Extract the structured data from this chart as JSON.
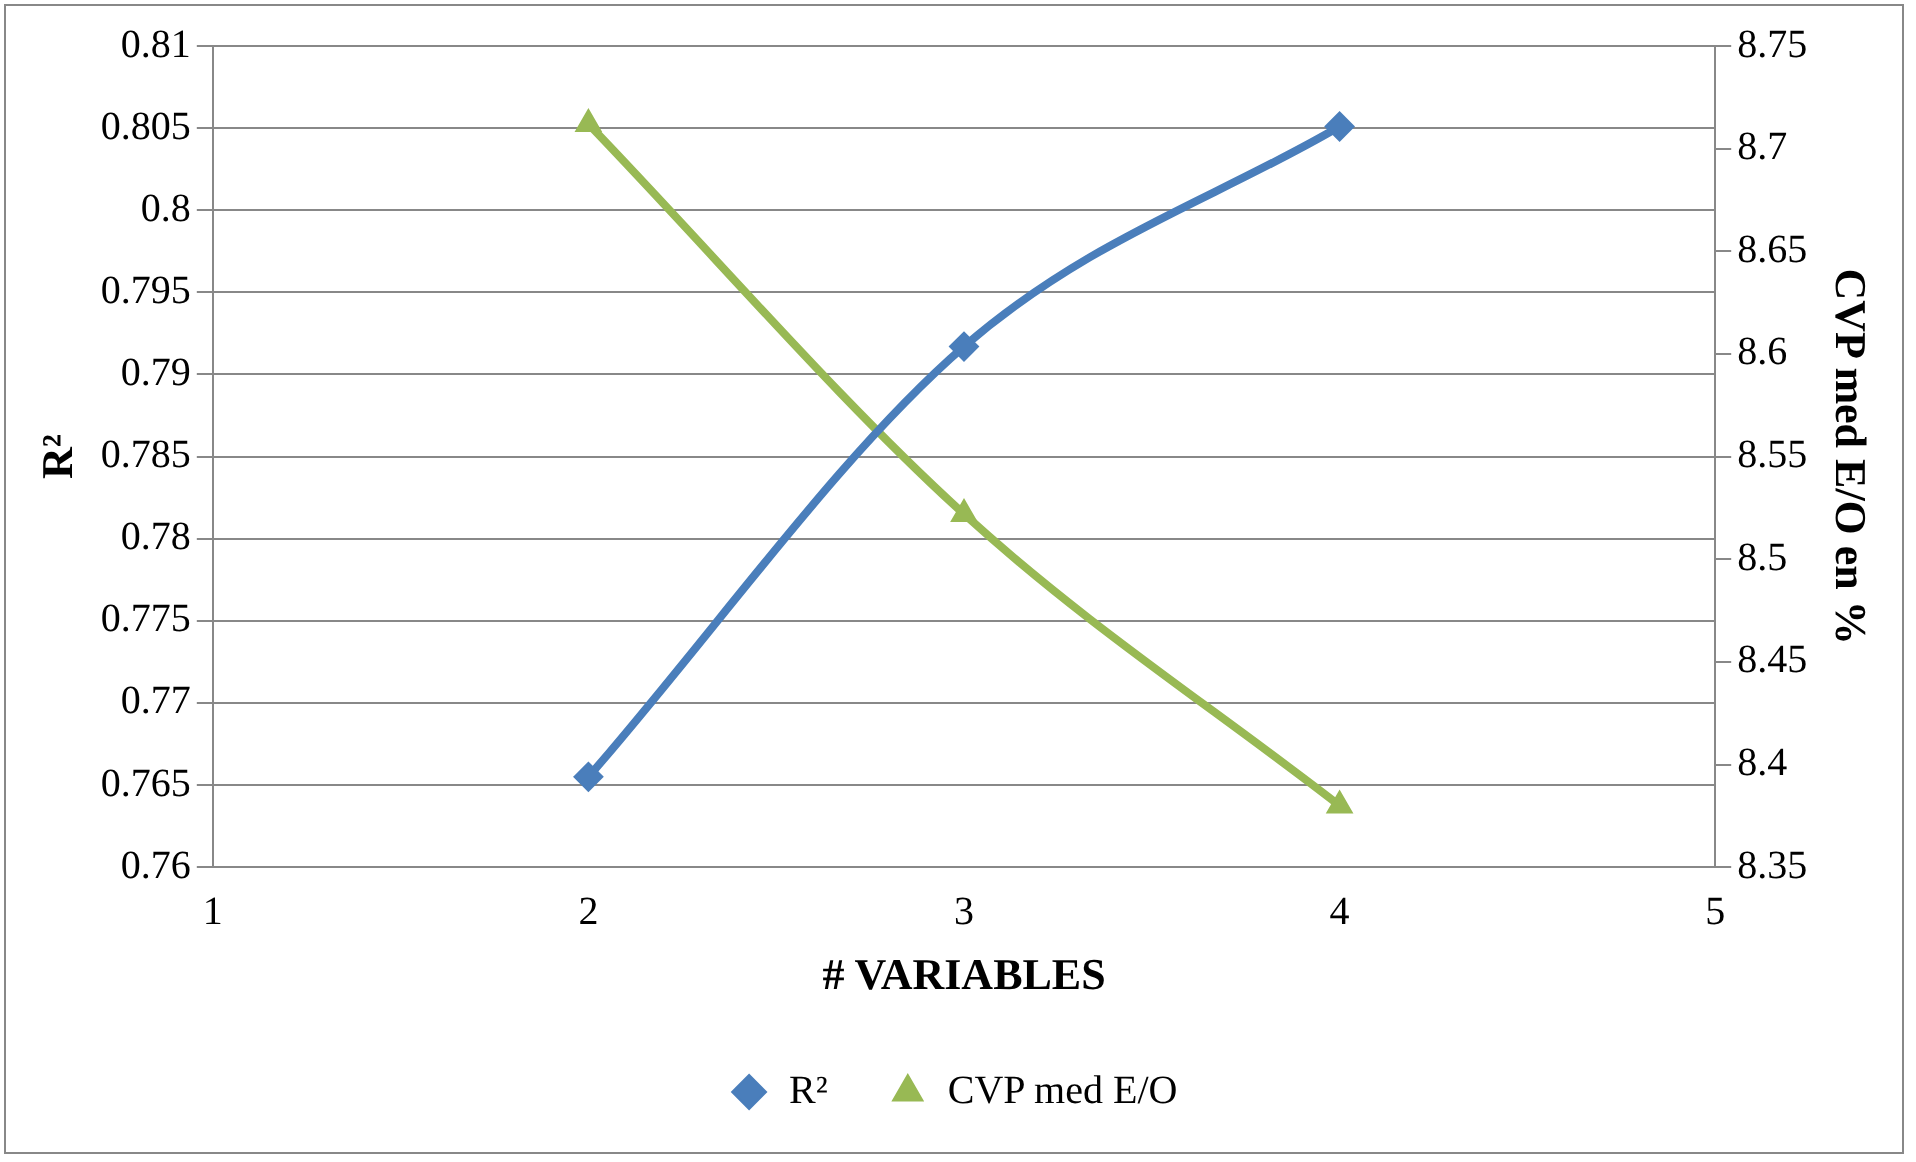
{
  "chart_data": {
    "type": "line",
    "xlabel": "# VARIABLES",
    "ylabel": "R²",
    "y2label": "CVP med E/O en %",
    "x": [
      2,
      3,
      4
    ],
    "series": [
      {
        "name": "R²",
        "color": "#4a7ebb",
        "values": [
          0.7655,
          0.7917,
          0.8051
        ],
        "marker": "diamond"
      },
      {
        "name": "CVP med E/O",
        "color": "#98b954",
        "values": [
          8.712,
          8.522,
          8.38
        ],
        "marker": "triangle",
        "axis": "y2"
      }
    ],
    "xlim": [
      1,
      5
    ],
    "xticks": [
      1,
      2,
      3,
      4,
      5
    ],
    "ylim": [
      0.76,
      0.81
    ],
    "yticks": [
      0.76,
      0.765,
      0.77,
      0.775,
      0.78,
      0.785,
      0.79,
      0.795,
      0.8,
      0.805,
      0.81
    ],
    "y2lim": [
      8.35,
      8.75
    ],
    "y2ticks": [
      8.35,
      8.4,
      8.45,
      8.5,
      8.55,
      8.6,
      8.65,
      8.7,
      8.75
    ],
    "grid": "y",
    "legend": "bottom",
    "line_style": "solid"
  }
}
